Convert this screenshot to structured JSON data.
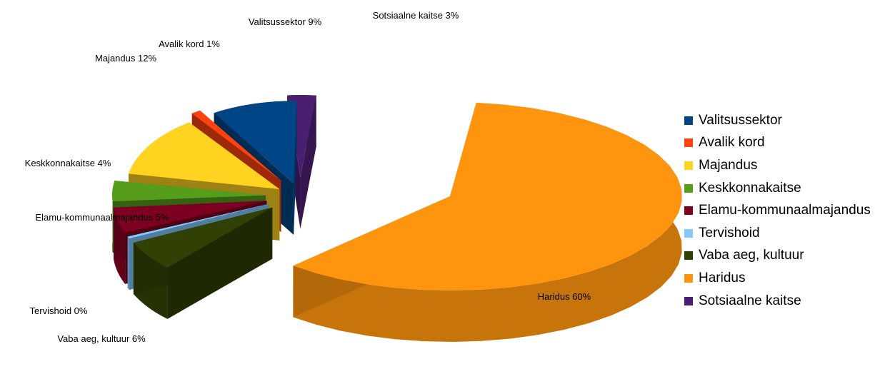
{
  "chart_data": {
    "type": "pie",
    "variant": "3d-exploded",
    "title": "",
    "legend_position": "right",
    "slices": [
      {
        "name": "Valitsussektor",
        "value": 9,
        "color": "#004586",
        "label": "Valitsussektor 9%"
      },
      {
        "name": "Avalik kord",
        "value": 1,
        "color": "#ff420e",
        "label": "Avalik kord 1%"
      },
      {
        "name": "Majandus",
        "value": 12,
        "color": "#ffd320",
        "label": "Majandus 12%"
      },
      {
        "name": "Keskkonnakaitse",
        "value": 4,
        "color": "#579d1c",
        "label": "Keskkonnakaitse 4%"
      },
      {
        "name": "Elamu-kommunaalmajandus",
        "value": 5,
        "color": "#7e0021",
        "label": "Elamu-kommunaalmajandus 5%"
      },
      {
        "name": "Tervishoid",
        "value": 0,
        "color": "#83caff",
        "label": "Tervishoid 0%"
      },
      {
        "name": "Vaba aeg, kultuur",
        "value": 6,
        "color": "#314004",
        "label": "Vaba aeg, kultuur 6%"
      },
      {
        "name": "Haridus",
        "value": 60,
        "color": "#ff950e",
        "label": "Haridus 60%"
      },
      {
        "name": "Sotsiaalne kaitse",
        "value": 3,
        "color": "#4b1f6f",
        "label": "Sotsiaalne kaitse 3%"
      }
    ]
  }
}
